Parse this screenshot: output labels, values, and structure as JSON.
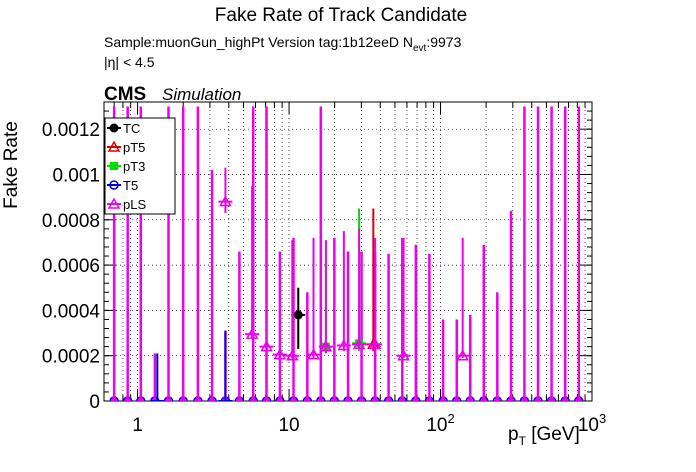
{
  "title": "Fake Rate of Track Candidate",
  "sample_line": "Sample:muonGun_highPt   Version tag:1b12eeD  N",
  "nevt_sub": "evt",
  "nevt_value": ":9973",
  "eta_cut": "|η| < 4.5",
  "cms_label": "CMS",
  "simulation_label": "Simulation",
  "chart_data": {
    "type": "scatter",
    "title": "Fake Rate of Track Candidate",
    "ylabel": "Fake Rate",
    "xlabel_main": "p",
    "xlabel_sub": "T",
    "xlabel_unit": " [GeV]",
    "x_scale": "log",
    "xlim": [
      0.6,
      1000
    ],
    "ylim": [
      0,
      0.00132
    ],
    "grid": true,
    "legend_position": "top-left",
    "x_ticks": [
      {
        "value": 1,
        "label": "1"
      },
      {
        "value": 10,
        "label": "10"
      },
      {
        "value": 100,
        "label": "10",
        "sup": "2"
      },
      {
        "value": 1000,
        "label": "10",
        "sup": "3"
      }
    ],
    "y_ticks": [
      {
        "value": 0,
        "label": "0"
      },
      {
        "value": 0.0002,
        "label": "0.0002"
      },
      {
        "value": 0.0004,
        "label": "0.0004"
      },
      {
        "value": 0.0006,
        "label": "0.0006"
      },
      {
        "value": 0.0008,
        "label": "0.0008"
      },
      {
        "value": 0.001,
        "label": "0.001"
      },
      {
        "value": 0.0012,
        "label": "0.0012"
      }
    ],
    "bin_centers": [
      0.7,
      0.86,
      1.05,
      1.3,
      1.6,
      2.0,
      2.5,
      3.1,
      3.8,
      4.7,
      5.8,
      7.1,
      8.7,
      10.7,
      13.2,
      16.2,
      19.9,
      24.5,
      30.1,
      37.0,
      45.4,
      55.9,
      68.7,
      84.4,
      104,
      128,
      157,
      193,
      237,
      292,
      358,
      440,
      541,
      665,
      818
    ],
    "series": [
      {
        "name": "TC",
        "color": "#000000",
        "marker": "circle-filled",
        "points": [
          [
            11.5,
            0.00038,
            0.0005,
            0.00023
          ]
        ]
      },
      {
        "name": "pT5",
        "color": "#e00000",
        "marker": "triangle-open",
        "points": [
          [
            36,
            0.00025,
            0.00085,
            0.00022
          ]
        ]
      },
      {
        "name": "pT3",
        "color": "#00dd00",
        "marker": "square-filled",
        "points": [
          [
            17.5,
            0.00024,
            0.0006,
            0.00021
          ],
          [
            29,
            0.000255,
            0.00085,
            0.00022
          ]
        ]
      },
      {
        "name": "T5",
        "color": "#0000dd",
        "marker": "circle-open",
        "points": [
          [
            1.35,
            0.0,
            0.00021,
            0
          ],
          [
            3.8,
            0.0,
            0.00031,
            0
          ]
        ]
      },
      {
        "name": "pLS",
        "color": "#ee00ee",
        "marker": "triangle-open",
        "points": [
          [
            3.8,
            0.00088,
            0.00103,
            0.00083
          ],
          [
            5.7,
            0.000295,
            0.00095,
            0.00028
          ],
          [
            7.1,
            0.00024,
            0.0006,
            0.00022
          ],
          [
            8.7,
            0.000205,
            0.00066,
            0.00019
          ],
          [
            10.5,
            0.0002,
            0.00071,
            0.00018
          ],
          [
            14.5,
            0.000205,
            0.00072,
            0.00019
          ],
          [
            17.5,
            0.00024,
            0.00071,
            0.00021
          ],
          [
            23,
            0.000245,
            0.00075,
            0.00022
          ],
          [
            29,
            0.00025,
            0.00076,
            0.00023
          ],
          [
            37,
            0.00025,
            0.00072,
            0.00022
          ],
          [
            57,
            0.0002,
            0.00072,
            0.00019
          ],
          [
            140,
            0.0002,
            0.00072,
            0.00019
          ]
        ]
      }
    ],
    "zero_bins_error_upper": [
      0.0013,
      0.0013,
      0.0013,
      0.00021,
      0.0013,
      0.0013,
      0.0013,
      0.00102,
      0.00031,
      0.00066,
      0.0013,
      0.0013,
      0.00066,
      0.00072,
      0.00048,
      0.0013,
      0.00072,
      0.00066,
      0.00066,
      0.00066,
      0.00065,
      0.00072,
      0.00069,
      0.00065,
      0.00036,
      0.00036,
      0.00038,
      0.00069,
      0.00048,
      0.00084,
      0.0013,
      0.0013,
      0.0013,
      0.0013,
      0.0013
    ]
  }
}
